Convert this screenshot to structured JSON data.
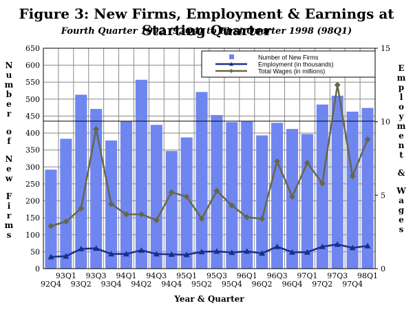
{
  "title": "Figure 3: New Firms, Employment & Earnings at Starting Quarter",
  "subtitle": "Fourth Quarter 1992 (92Q4) to First Quarter 1998 (98Q1)",
  "colors": {
    "bar": "#6f86f0",
    "employment": "#1a2f8a",
    "wages": "#66664a",
    "grid": "#888888",
    "background": "#ffffff"
  },
  "chart_data": {
    "type": "bar",
    "title": "Figure 3: New Firms, Employment & Earnings at Starting Quarter",
    "subtitle": "Fourth Quarter 1992 (92Q4) to First Quarter 1998 (98Q1)",
    "xlabel": "Year & Quarter",
    "ylabel": "Number of New Firms",
    "y2label": "Employment & Wages",
    "ylim": [
      0,
      650
    ],
    "y2lim": [
      0,
      15
    ],
    "yticks": [
      "0",
      "50",
      "100",
      "150",
      "200",
      "250",
      "300",
      "350",
      "400",
      "450",
      "500",
      "550",
      "600",
      "650"
    ],
    "y2ticks": [
      "0",
      "5",
      "10",
      "15"
    ],
    "categories": [
      "92Q4",
      "93Q1",
      "93Q2",
      "93Q3",
      "93Q4",
      "94Q1",
      "94Q2",
      "94Q3",
      "94Q4",
      "95Q1",
      "95Q2",
      "95Q3",
      "95Q4",
      "96Q1",
      "96Q2",
      "96Q3",
      "96Q4",
      "97Q1",
      "97Q2",
      "97Q3",
      "97Q4",
      "98Q1"
    ],
    "tick_labels_lower": [
      "92Q4",
      "93Q2",
      "93Q4",
      "94Q2",
      "94Q4",
      "95Q2",
      "95Q4",
      "96Q2",
      "96Q4",
      "97Q2",
      "97Q4"
    ],
    "tick_labels_upper": [
      "93Q1",
      "93Q3",
      "94Q1",
      "94Q3",
      "95Q1",
      "95Q3",
      "96Q1",
      "96Q3",
      "97Q1",
      "97Q3",
      "98Q1"
    ],
    "series": [
      {
        "name": "Number of New Firms",
        "type": "bar",
        "axis": "left",
        "values": [
          292,
          383,
          513,
          471,
          378,
          435,
          557,
          424,
          347,
          387,
          521,
          453,
          432,
          434,
          393,
          430,
          412,
          397,
          484,
          510,
          463,
          474
        ]
      },
      {
        "name": "Employment (in thousands)",
        "type": "line",
        "axis": "right",
        "marker": "triangle",
        "values": [
          0.8,
          0.85,
          1.35,
          1.38,
          1.0,
          1.0,
          1.25,
          1.0,
          0.97,
          0.95,
          1.15,
          1.18,
          1.1,
          1.18,
          1.05,
          1.5,
          1.12,
          1.12,
          1.5,
          1.65,
          1.42,
          1.55
        ]
      },
      {
        "name": "Total Wages (in millions)",
        "type": "line",
        "axis": "right",
        "marker": "diamond",
        "values": [
          2.9,
          3.2,
          4.1,
          9.5,
          4.4,
          3.7,
          3.7,
          3.3,
          5.2,
          4.9,
          3.4,
          5.3,
          4.3,
          3.5,
          3.4,
          7.3,
          4.9,
          7.2,
          5.8,
          12.5,
          6.3,
          8.8
        ]
      }
    ],
    "reference_line_y": 435,
    "legend_position": "top-right",
    "grid": true
  }
}
